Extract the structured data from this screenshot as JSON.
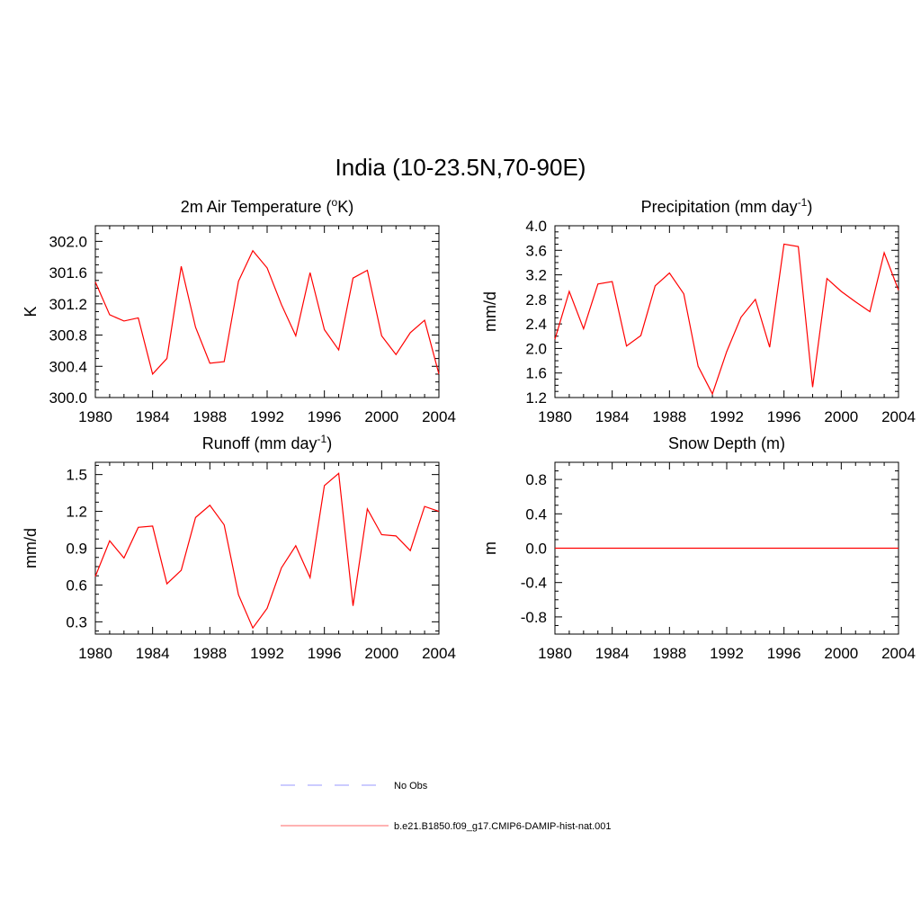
{
  "figure": {
    "title": "India (10-23.5N,70-90E)",
    "legend": [
      {
        "label": "No Obs",
        "color": "#9999ff",
        "style": "dashed"
      },
      {
        "label": "b.e21.B1850.f09_g17.CMIP6-DAMIP-hist-nat.001",
        "color": "#ff6666",
        "style": "solid"
      }
    ]
  },
  "chart_data": [
    {
      "type": "line",
      "title": "2m Air Temperature (",
      "title_sup": "o",
      "title_end": "K)",
      "ylabel": "K",
      "x": [
        1980,
        1981,
        1982,
        1983,
        1984,
        1985,
        1986,
        1987,
        1988,
        1989,
        1990,
        1991,
        1992,
        1993,
        1994,
        1995,
        1996,
        1997,
        1998,
        1999,
        2000,
        2001,
        2002,
        2003,
        2004
      ],
      "series": [
        {
          "color": "#ff0000",
          "values": [
            301.48,
            301.06,
            300.98,
            301.02,
            300.3,
            300.5,
            301.68,
            300.9,
            300.44,
            300.46,
            301.49,
            301.88,
            301.66,
            301.19,
            300.79,
            301.6,
            300.87,
            300.61,
            301.53,
            301.63,
            300.79,
            300.55,
            300.83,
            300.99,
            300.3
          ]
        }
      ],
      "xlim": [
        1980,
        2004
      ],
      "ylim": [
        300.0,
        302.2
      ],
      "xticks": [
        "1980",
        "1984",
        "1988",
        "1992",
        "1996",
        "2000",
        "2004"
      ],
      "yticks": [
        "300.0",
        "300.4",
        "300.8",
        "301.2",
        "301.6",
        "302.0"
      ],
      "ytick_values": [
        300.0,
        300.4,
        300.8,
        301.2,
        301.6,
        302.0
      ]
    },
    {
      "type": "line",
      "title": "Precipitation (mm day",
      "title_sup": "-1",
      "title_end": ")",
      "ylabel": "mm/d",
      "x": [
        1980,
        1981,
        1982,
        1983,
        1984,
        1985,
        1986,
        1987,
        1988,
        1989,
        1990,
        1991,
        1992,
        1993,
        1994,
        1995,
        1996,
        1997,
        1998,
        1999,
        2000,
        2001,
        2002,
        2003,
        2004
      ],
      "series": [
        {
          "color": "#ff0000",
          "values": [
            2.15,
            2.93,
            2.32,
            3.05,
            3.09,
            2.04,
            2.21,
            3.02,
            3.23,
            2.89,
            1.71,
            1.26,
            1.95,
            2.51,
            2.8,
            2.02,
            3.7,
            3.66,
            1.37,
            3.14,
            2.93,
            2.76,
            2.6,
            3.56,
            2.95
          ]
        }
      ],
      "xlim": [
        1980,
        2004
      ],
      "ylim": [
        1.2,
        4.0
      ],
      "xticks": [
        "1980",
        "1984",
        "1988",
        "1992",
        "1996",
        "2000",
        "2004"
      ],
      "yticks": [
        "1.2",
        "1.6",
        "2.0",
        "2.4",
        "2.8",
        "3.2",
        "3.6",
        "4.0"
      ],
      "ytick_values": [
        1.2,
        1.6,
        2.0,
        2.4,
        2.8,
        3.2,
        3.6,
        4.0
      ]
    },
    {
      "type": "line",
      "title": "Runoff (mm day",
      "title_sup": "-1",
      "title_end": ")",
      "ylabel": "mm/d",
      "x": [
        1980,
        1981,
        1982,
        1983,
        1984,
        1985,
        1986,
        1987,
        1988,
        1989,
        1990,
        1991,
        1992,
        1993,
        1994,
        1995,
        1996,
        1997,
        1998,
        1999,
        2000,
        2001,
        2002,
        2003,
        2004
      ],
      "series": [
        {
          "color": "#ff0000",
          "values": [
            0.67,
            0.96,
            0.82,
            1.07,
            1.08,
            0.61,
            0.72,
            1.15,
            1.25,
            1.09,
            0.52,
            0.25,
            0.41,
            0.74,
            0.92,
            0.66,
            1.41,
            1.51,
            0.43,
            1.22,
            1.01,
            1.0,
            0.88,
            1.24,
            1.2
          ]
        }
      ],
      "xlim": [
        1980,
        2004
      ],
      "ylim": [
        0.2,
        1.6
      ],
      "xticks": [
        "1980",
        "1984",
        "1988",
        "1992",
        "1996",
        "2000",
        "2004"
      ],
      "yticks": [
        "0.3",
        "0.6",
        "0.9",
        "1.2",
        "1.5"
      ],
      "ytick_values": [
        0.3,
        0.6,
        0.9,
        1.2,
        1.5
      ]
    },
    {
      "type": "line",
      "title": "Snow Depth (m)",
      "title_sup": "",
      "title_end": "",
      "ylabel": "m",
      "x": [
        1980,
        2004
      ],
      "series": [
        {
          "color": "#ff0000",
          "values": [
            0.0,
            0.0
          ]
        }
      ],
      "xlim": [
        1980,
        2004
      ],
      "ylim": [
        -1.0,
        1.0
      ],
      "xticks": [
        "1980",
        "1984",
        "1988",
        "1992",
        "1996",
        "2000",
        "2004"
      ],
      "yticks": [
        "-0.8",
        "-0.4",
        "0.0",
        "0.4",
        "0.8"
      ],
      "ytick_values": [
        -0.8,
        -0.4,
        0.0,
        0.4,
        0.8
      ]
    }
  ]
}
